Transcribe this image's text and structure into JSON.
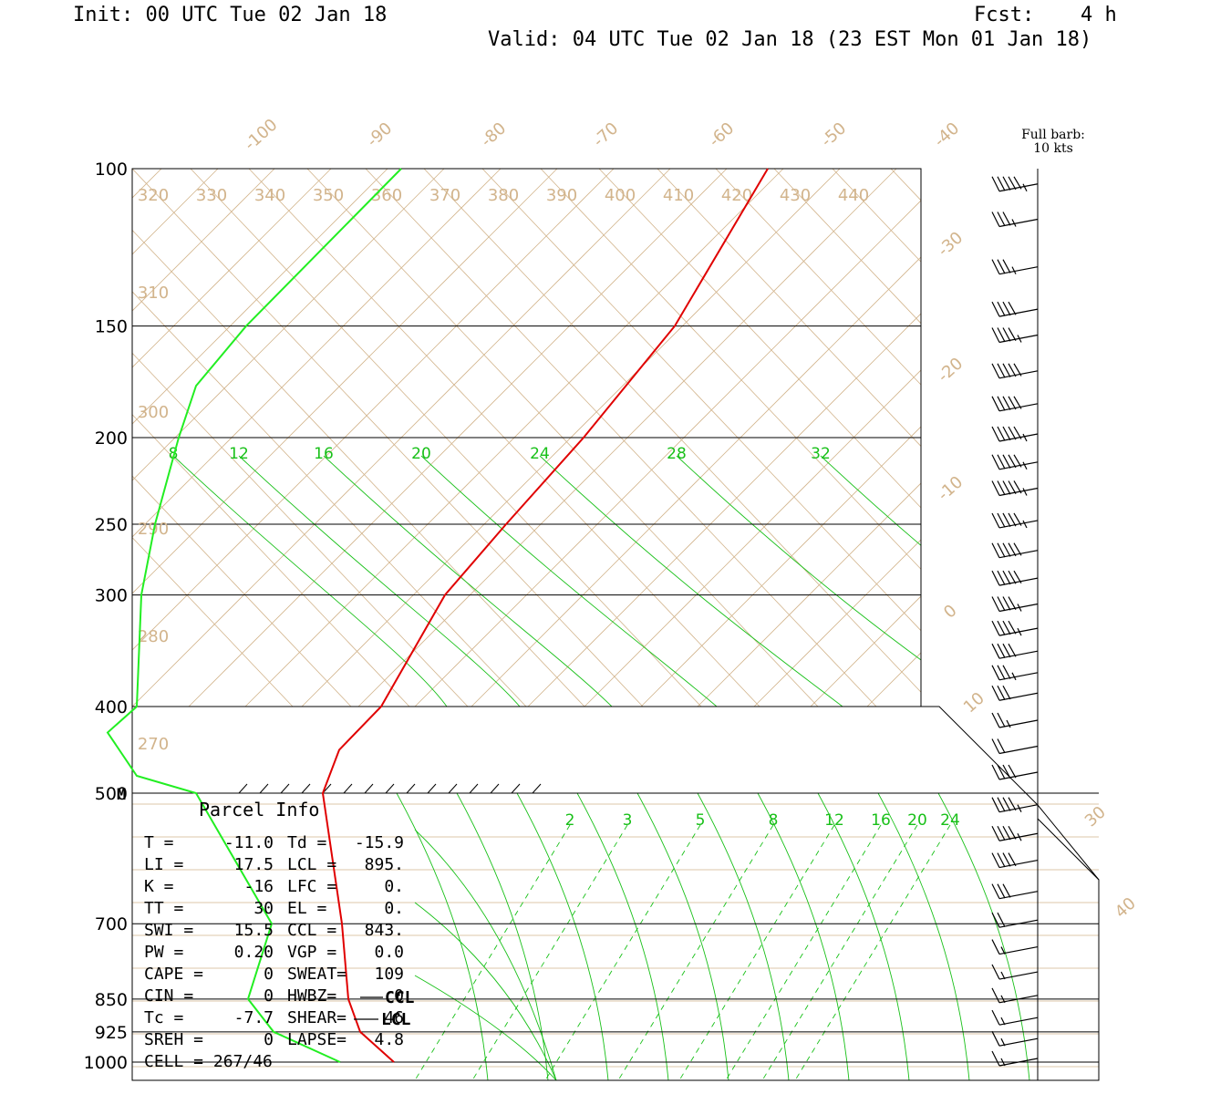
{
  "header": {
    "init": "Init: 00 UTC Tue 02 Jan 18",
    "fcst_label": "Fcst:",
    "fcst_value": "4 h",
    "valid": "Valid: 04 UTC Tue 02 Jan 18 (23 EST Mon 01 Jan 18)"
  },
  "wind_legend": {
    "line1": "Full barb:",
    "line2": "10 kts"
  },
  "colors": {
    "temperature": "#e00000",
    "dewpoint": "#22ee22",
    "isotherm": "#d2b48c",
    "mixing_ratio": "#18c018",
    "grid": "#000000"
  },
  "parcel_info": {
    "title": "Parcel Info",
    "rows": [
      [
        "T  =",
        "-11.0",
        "Td =",
        "-15.9"
      ],
      [
        "LI =",
        "17.5",
        "LCL =",
        "895."
      ],
      [
        "K  =",
        "-16",
        "LFC =",
        "0."
      ],
      [
        "TT =",
        "30",
        "EL  =",
        "0."
      ],
      [
        "SWI =",
        "15.5",
        "CCL =",
        "843."
      ],
      [
        "PW =",
        "0.20",
        "VGP =",
        "0.0"
      ],
      [
        "CAPE =",
        "0",
        "SWEAT=",
        "109"
      ],
      [
        "CIN =",
        "0",
        "HWBZ=",
        "0"
      ],
      [
        "Tc =",
        "-7.7",
        "SHEAR=",
        "46"
      ],
      [
        "SREH =",
        "0",
        "LAPSE=",
        "4.8"
      ],
      [
        "CELL = 267/46",
        "",
        "",
        ""
      ]
    ],
    "markers": {
      "ccl": "CCL",
      "lcl": "LCL",
      "m": "M"
    }
  },
  "chart_data": {
    "type": "line",
    "title": "",
    "pressure_levels": [
      100,
      150,
      200,
      250,
      300,
      400,
      500,
      700,
      850,
      925,
      1000
    ],
    "upper_isotherm_labels": [
      "-100",
      "-90",
      "-80",
      "-70",
      "-60",
      "-50",
      "-40",
      "-30",
      "-20",
      "-10",
      "0",
      "10",
      "30",
      "40"
    ],
    "upper_theta_top_labels": [
      "320",
      "330",
      "340",
      "350",
      "360",
      "370",
      "380",
      "390",
      "400",
      "410",
      "420",
      "430",
      "440"
    ],
    "upper_theta_left_labels": [
      "310",
      "300",
      "290",
      "280",
      "270"
    ],
    "upper_mixing_ratio_labels": [
      "8",
      "12",
      "16",
      "20",
      "24",
      "28",
      "32"
    ],
    "lower_mixing_ratio_labels": [
      "2",
      "3",
      "5",
      "8",
      "12",
      "16",
      "20",
      "24"
    ],
    "series": [
      {
        "name": "",
        "kind": "temperature",
        "points": [
          [
            100,
            -60
          ],
          [
            150,
            -56
          ],
          [
            200,
            -53
          ],
          [
            250,
            -50
          ],
          [
            300,
            -48
          ],
          [
            400,
            -42
          ],
          [
            450,
            -35
          ],
          [
            500,
            -26
          ],
          [
            700,
            -19
          ],
          [
            850,
            -16
          ],
          [
            925,
            -14
          ],
          [
            1000,
            -11
          ]
        ]
      },
      {
        "name": "",
        "kind": "dewpoint",
        "points": [
          [
            100,
            -86
          ],
          [
            150,
            -92
          ],
          [
            175,
            -95
          ],
          [
            200,
            -95
          ],
          [
            250,
            -90
          ],
          [
            300,
            -86
          ],
          [
            400,
            -83
          ],
          [
            430,
            -84
          ],
          [
            480,
            -82
          ],
          [
            500,
            -80
          ],
          [
            700,
            -52
          ],
          [
            850,
            -40
          ],
          [
            925,
            -25
          ],
          [
            1000,
            -16
          ]
        ]
      }
    ],
    "wind_profile_knots": [
      {
        "p": 105,
        "spd": 55
      },
      {
        "p": 115,
        "spd": 35
      },
      {
        "p": 130,
        "spd": 35
      },
      {
        "p": 145,
        "spd": 40
      },
      {
        "p": 155,
        "spd": 45
      },
      {
        "p": 170,
        "spd": 50
      },
      {
        "p": 185,
        "spd": 50
      },
      {
        "p": 200,
        "spd": 55
      },
      {
        "p": 215,
        "spd": 55
      },
      {
        "p": 230,
        "spd": 55
      },
      {
        "p": 250,
        "spd": 55
      },
      {
        "p": 270,
        "spd": 50
      },
      {
        "p": 290,
        "spd": 50
      },
      {
        "p": 310,
        "spd": 45
      },
      {
        "p": 330,
        "spd": 45
      },
      {
        "p": 350,
        "spd": 40
      },
      {
        "p": 370,
        "spd": 35
      },
      {
        "p": 390,
        "spd": 30
      },
      {
        "p": 420,
        "spd": 25
      },
      {
        "p": 450,
        "spd": 20
      },
      {
        "p": 480,
        "spd": 40
      },
      {
        "p": 520,
        "spd": 45
      },
      {
        "p": 560,
        "spd": 45
      },
      {
        "p": 600,
        "spd": 40
      },
      {
        "p": 650,
        "spd": 30
      },
      {
        "p": 700,
        "spd": 20
      },
      {
        "p": 750,
        "spd": 15
      },
      {
        "p": 800,
        "spd": 15
      },
      {
        "p": 850,
        "spd": 15
      },
      {
        "p": 900,
        "spd": 15
      },
      {
        "p": 950,
        "spd": 15
      },
      {
        "p": 1000,
        "spd": 15
      }
    ]
  }
}
